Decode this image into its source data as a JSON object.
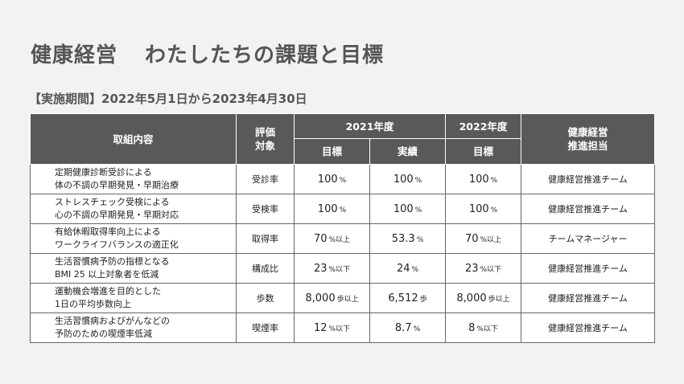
{
  "title": {
    "part1": "健康経営",
    "part2": "わたしたちの課題と目標"
  },
  "period": "【実施期間】2022年5月1日から2023年4月30日",
  "headers": {
    "item": "取組内容",
    "target_l1": "評価",
    "target_l2": "対象",
    "y2021": "2021年度",
    "y2022": "2022年度",
    "owner_l1": "健康経営",
    "owner_l2": "推進担当",
    "goal": "目標",
    "actual": "実績",
    "goal2022": "目標"
  },
  "rows": [
    {
      "l1": "定期健康診断受診による",
      "l2": "体の不調の早期発見・早期治療",
      "target": "受診率",
      "g21": "100",
      "g21u": "%",
      "a21": "100",
      "a21u": "%",
      "g22": "100",
      "g22u": "%",
      "owner": "健康経営推進チーム"
    },
    {
      "l1": "ストレスチェック受検による",
      "l2": "心の不調の早期発見・早期対応",
      "target": "受検率",
      "g21": "100",
      "g21u": "%",
      "a21": "100",
      "a21u": "%",
      "g22": "100",
      "g22u": "%",
      "owner": "健康経営推進チーム"
    },
    {
      "l1": "有給休暇取得率向上による",
      "l2": "ワークライフバランスの適正化",
      "target": "取得率",
      "g21": "70",
      "g21u": "%以上",
      "a21": "53.3",
      "a21u": "%",
      "g22": "70",
      "g22u": "%以上",
      "owner": "チームマネージャー"
    },
    {
      "l1": "生活習慣病予防の指標となる",
      "l2": "BMI 25 以上対象者を低減",
      "target": "構成比",
      "g21": "23",
      "g21u": "%以下",
      "a21": "24",
      "a21u": "%",
      "g22": "23",
      "g22u": "%以下",
      "owner": "健康経営推進チーム"
    },
    {
      "l1": "運動機会増進を目的とした",
      "l2": "1日の平均歩数向上",
      "target": "歩数",
      "g21": "8,000",
      "g21u": "歩以上",
      "a21": "6,512",
      "a21u": "歩",
      "g22": "8,000",
      "g22u": "歩以上",
      "owner": "健康経営推進チーム"
    },
    {
      "l1": "生活習慣病およびがんなどの",
      "l2": "予防のための喫煙率低減",
      "target": "喫煙率",
      "g21": "12",
      "g21u": "%以下",
      "a21": "8.7",
      "a21u": "%",
      "g22": "8",
      "g22u": "%以下",
      "owner": "健康経営推進チーム"
    }
  ]
}
